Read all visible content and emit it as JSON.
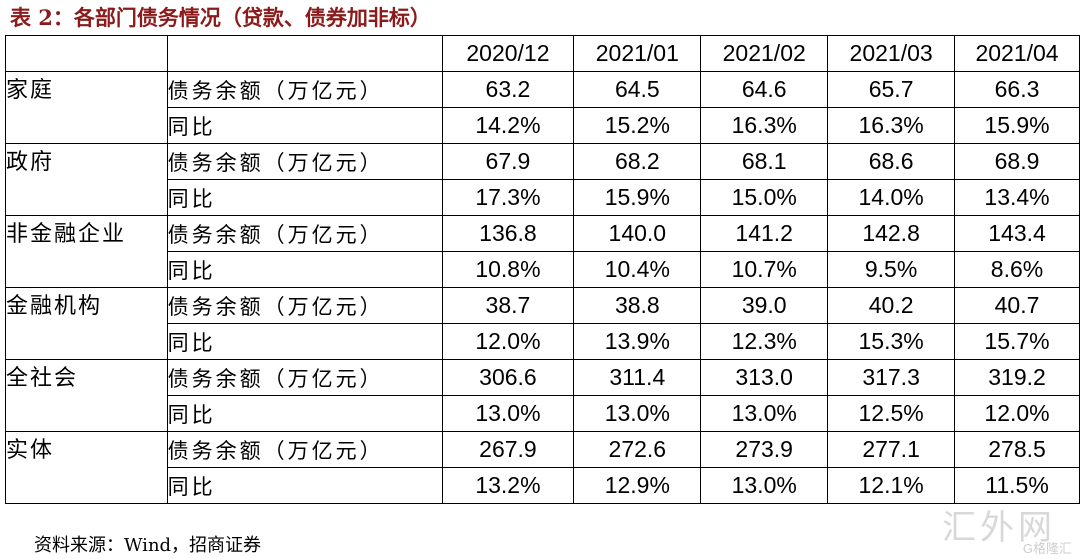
{
  "title": "表 2：各部门债务情况（贷款、债券加非标）",
  "table": {
    "headers": [
      "",
      "",
      "2020/12",
      "2021/01",
      "2021/02",
      "2021/03",
      "2021/04"
    ],
    "groups": [
      {
        "category": "家庭",
        "rows": [
          {
            "metric": "债务余额（万亿元）",
            "values": [
              "63.2",
              "64.5",
              "64.6",
              "65.7",
              "66.3"
            ]
          },
          {
            "metric": "同比",
            "values": [
              "14.2%",
              "15.2%",
              "16.3%",
              "16.3%",
              "15.9%"
            ]
          }
        ]
      },
      {
        "category": "政府",
        "rows": [
          {
            "metric": "债务余额（万亿元）",
            "values": [
              "67.9",
              "68.2",
              "68.1",
              "68.6",
              "68.9"
            ]
          },
          {
            "metric": "同比",
            "values": [
              "17.3%",
              "15.9%",
              "15.0%",
              "14.0%",
              "13.4%"
            ]
          }
        ]
      },
      {
        "category": "非金融企业",
        "rows": [
          {
            "metric": "债务余额（万亿元）",
            "values": [
              "136.8",
              "140.0",
              "141.2",
              "142.8",
              "143.4"
            ]
          },
          {
            "metric": "同比",
            "values": [
              "10.8%",
              "10.4%",
              "10.7%",
              "9.5%",
              "8.6%"
            ]
          }
        ]
      },
      {
        "category": "金融机构",
        "rows": [
          {
            "metric": "债务余额（万亿元）",
            "values": [
              "38.7",
              "38.8",
              "39.0",
              "40.2",
              "40.7"
            ]
          },
          {
            "metric": "同比",
            "values": [
              "12.0%",
              "13.9%",
              "12.3%",
              "15.3%",
              "15.7%"
            ]
          }
        ]
      },
      {
        "category": "全社会",
        "rows": [
          {
            "metric": "债务余额（万亿元）",
            "values": [
              "306.6",
              "311.4",
              "313.0",
              "317.3",
              "319.2"
            ]
          },
          {
            "metric": "同比",
            "values": [
              "13.0%",
              "13.0%",
              "13.0%",
              "12.5%",
              "12.0%"
            ]
          }
        ]
      },
      {
        "category": "实体",
        "rows": [
          {
            "metric": "债务余额（万亿元）",
            "values": [
              "267.9",
              "272.6",
              "273.9",
              "277.1",
              "278.5"
            ]
          },
          {
            "metric": "同比",
            "values": [
              "13.2%",
              "12.9%",
              "13.0%",
              "12.1%",
              "11.5%"
            ]
          }
        ]
      }
    ]
  },
  "source": "资料来源：Wind，招商证券",
  "watermark": {
    "main": "汇外网",
    "sub": "G格隆汇"
  },
  "colors": {
    "title": "#8b1a1a",
    "border": "#000000"
  }
}
